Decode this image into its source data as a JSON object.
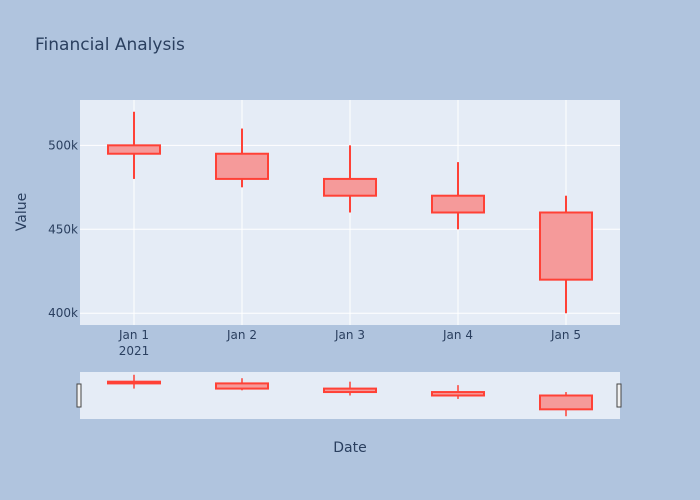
{
  "colors": {
    "paper_bg": "#b0c4de",
    "plot_bg": "#e5ecf6",
    "grid": "#ffffff",
    "text": "#2a3f5f",
    "candle_line": "#ff4136",
    "candle_fill": "#f59a9a"
  },
  "chart_data": {
    "type": "candlestick",
    "title": "Financial Analysis",
    "xlabel": "Date",
    "ylabel": "Value",
    "x": [
      "2021-01-01",
      "2021-01-02",
      "2021-01-03",
      "2021-01-04",
      "2021-01-05"
    ],
    "x_tick_labels": [
      "Jan 1",
      "Jan 2",
      "Jan 3",
      "Jan 4",
      "Jan 5"
    ],
    "x_tick_sublabel": "2021",
    "open": [
      500000,
      495000,
      480000,
      470000,
      460000
    ],
    "high": [
      520000,
      510000,
      500000,
      490000,
      470000
    ],
    "low": [
      480000,
      475000,
      460000,
      450000,
      400000
    ],
    "close": [
      495000,
      480000,
      470000,
      460000,
      420000
    ],
    "y_ticks": [
      400000,
      450000,
      500000
    ],
    "y_tick_labels": [
      "400k",
      "450k",
      "500k"
    ],
    "ylim": [
      393000,
      527000
    ],
    "rangeslider": true,
    "rangeslider_ylim": [
      392000,
      528000
    ],
    "grid": true
  }
}
